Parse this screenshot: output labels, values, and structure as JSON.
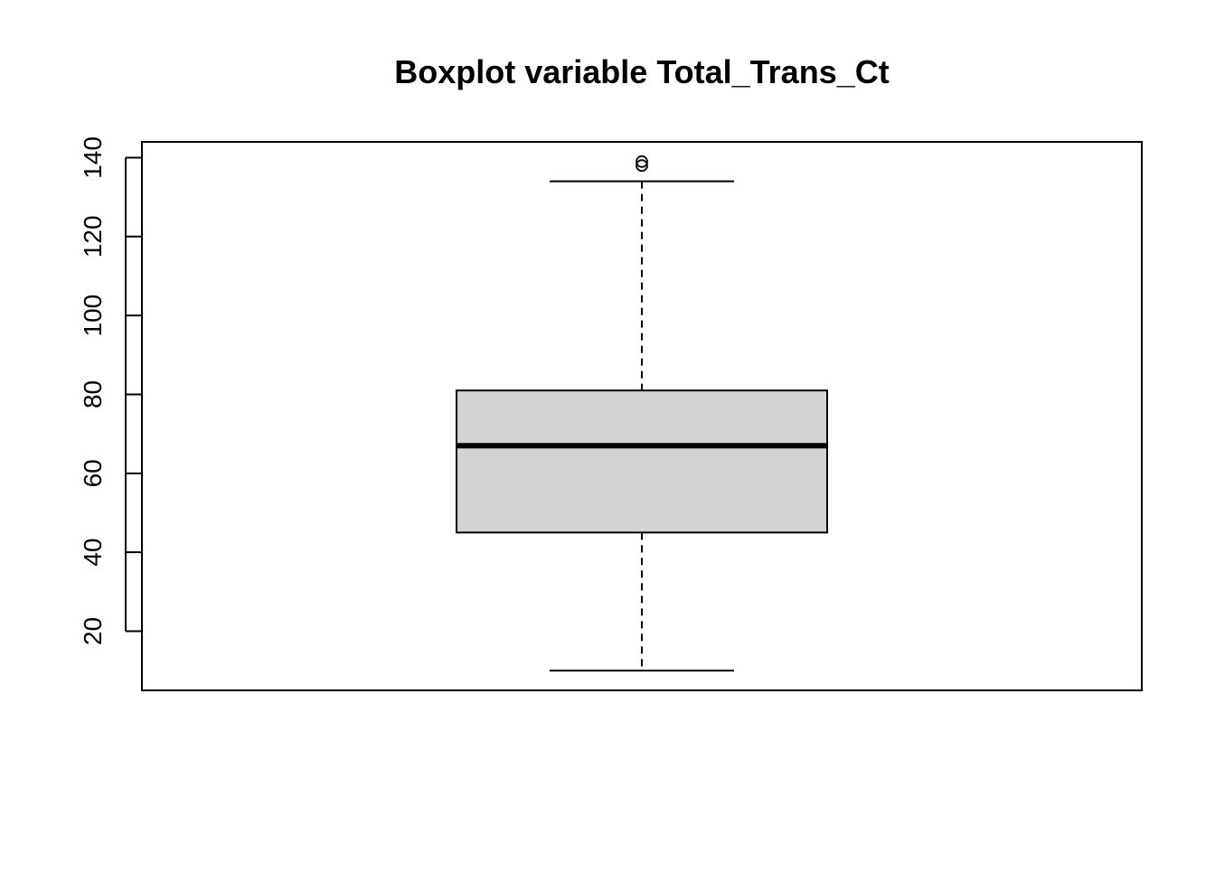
{
  "chart_data": {
    "type": "boxplot",
    "title": "Boxplot variable Total_Trans_Ct",
    "xlabel": "",
    "ylabel": "",
    "ylim": [
      5,
      144
    ],
    "y_ticks": [
      20,
      40,
      60,
      80,
      100,
      120,
      140
    ],
    "y_tick_labels": [
      "20",
      "40",
      "60",
      "80",
      "100",
      "120",
      "140"
    ],
    "grid": false,
    "legend": "none",
    "box": {
      "whisker_low": 10,
      "q1": 45,
      "median": 67,
      "q3": 81,
      "whisker_high": 134,
      "outliers": [
        138,
        139
      ]
    },
    "colors": {
      "box_fill": "#d3d3d3",
      "stroke": "#000000",
      "background": "#ffffff"
    }
  }
}
